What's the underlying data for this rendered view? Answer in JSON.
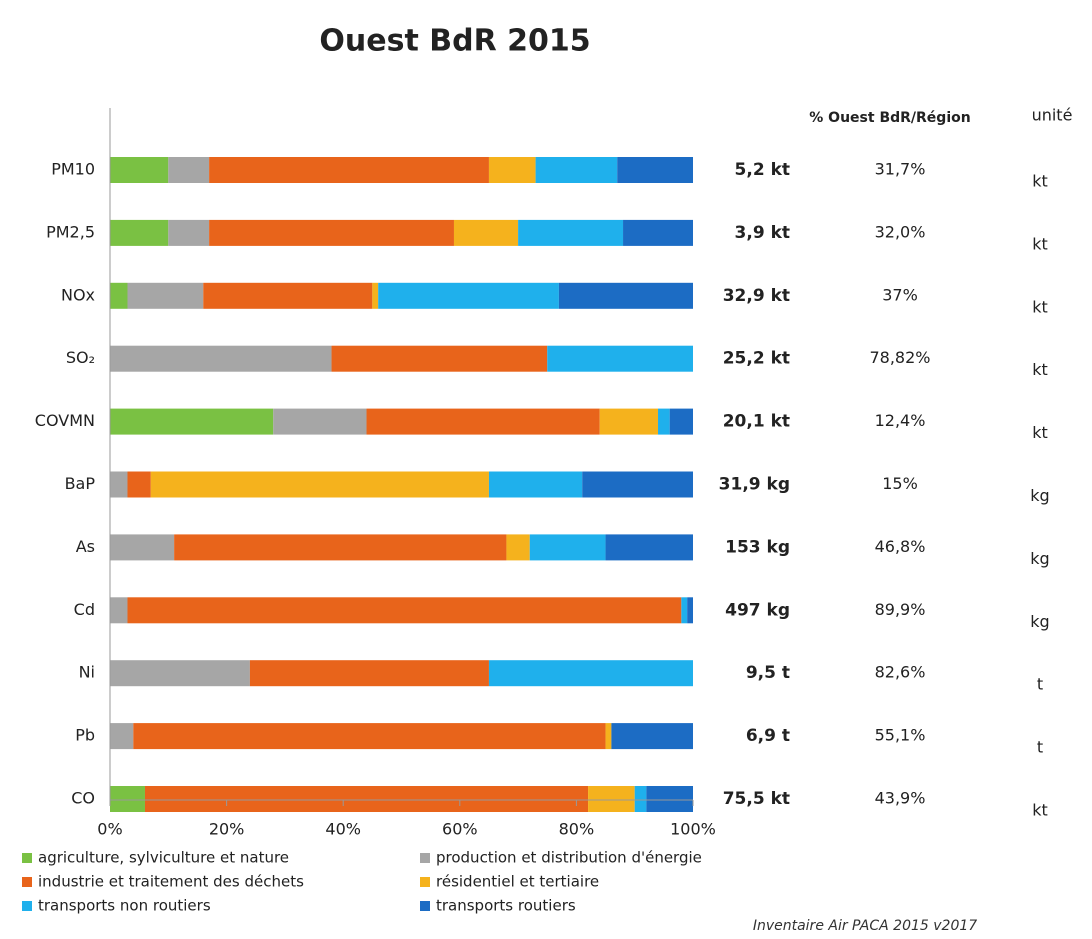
{
  "chart_data": {
    "type": "stacked_bar_horizontal",
    "title": "Ouest BdR 2015",
    "categories": [
      "PM10",
      "PM2,5",
      "NOx",
      "SO₂",
      "COVMN",
      "BaP",
      "As",
      "Cd",
      "Ni",
      "Pb",
      "CO"
    ],
    "series": [
      {
        "name": "agriculture, sylviculture et nature",
        "color": "#7ac143",
        "values": [
          10,
          10,
          3,
          0,
          28,
          0,
          0,
          0,
          0,
          0,
          6
        ]
      },
      {
        "name": "production et distribution d'énergie",
        "color": "#a6a6a6",
        "values": [
          7,
          7,
          13,
          38,
          16,
          3,
          11,
          3,
          24,
          4,
          0
        ]
      },
      {
        "name": "industrie et traitement des déchets",
        "color": "#e8641b",
        "values": [
          48,
          42,
          29,
          37,
          40,
          4,
          57,
          95,
          41,
          81,
          76
        ]
      },
      {
        "name": "résidentiel et tertiaire",
        "color": "#f5b21d",
        "values": [
          8,
          11,
          1,
          0,
          10,
          58,
          4,
          0,
          0,
          1,
          8
        ]
      },
      {
        "name": "transports non routiers",
        "color": "#1fb0ec",
        "values": [
          14,
          18,
          31,
          25,
          2,
          16,
          13,
          1,
          35,
          0,
          2
        ]
      },
      {
        "name": "transports routiers",
        "color": "#1c6cc4",
        "values": [
          13,
          12,
          23,
          0,
          4,
          19,
          15,
          1,
          0,
          14,
          8
        ]
      }
    ],
    "xlim": [
      0,
      100
    ],
    "xticks": [
      {
        "value": 0,
        "label": "0%"
      },
      {
        "value": 20,
        "label": "20%"
      },
      {
        "value": 40,
        "label": "40%"
      },
      {
        "value": 60,
        "label": "60%"
      },
      {
        "value": 80,
        "label": "80%"
      },
      {
        "value": 100,
        "label": "100%"
      }
    ],
    "totals": [
      "5,2 kt",
      "3,9 kt",
      "32,9 kt",
      "25,2 kt",
      "20,1 kt",
      "31,9 kg",
      "153 kg",
      "497 kg",
      "9,5 t",
      "6,9 t",
      "75,5 kt"
    ],
    "share_header": "% Ouest BdR/Région",
    "shares": [
      "31,7%",
      "32,0%",
      "37%",
      "78,82%",
      "12,4%",
      "15%",
      "46,8%",
      "89,9%",
      "82,6%",
      "55,1%",
      "43,9%"
    ],
    "unit_header": "unité",
    "units": [
      "kt",
      "kt",
      "kt",
      "kt",
      "kt",
      "kg",
      "kg",
      "kg",
      "t",
      "t",
      "kt"
    ],
    "source": "Inventaire Air PACA 2015 v2017"
  }
}
